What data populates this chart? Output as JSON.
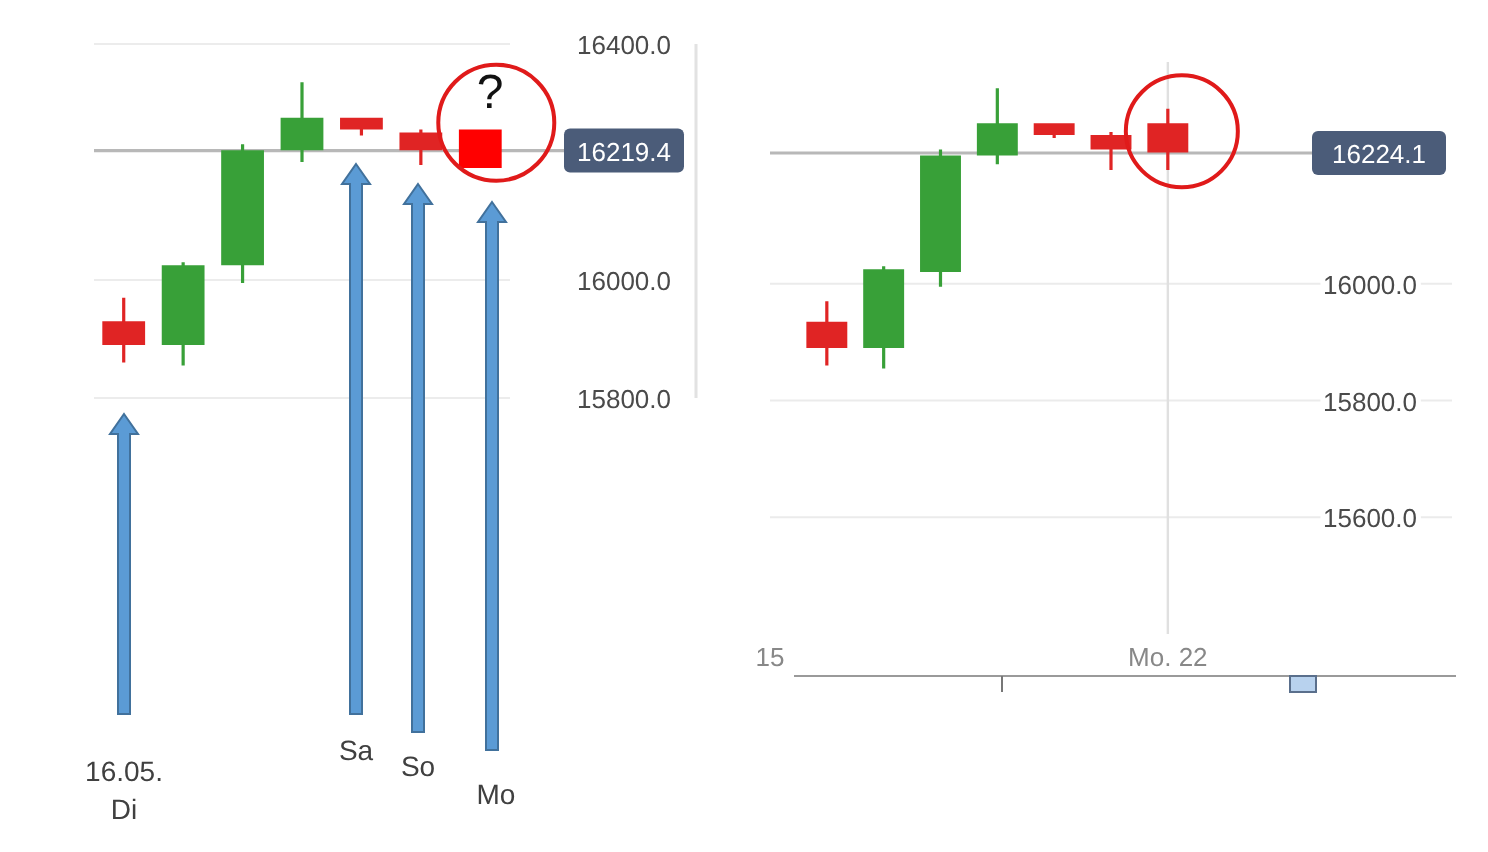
{
  "chart_data": [
    {
      "type": "candlestick",
      "categories": [
        null,
        null,
        null,
        null,
        null,
        null,
        null
      ],
      "ohlc": [
        [
          15930,
          15970,
          15860,
          15890
        ],
        [
          15890,
          16030,
          15855,
          16025
        ],
        [
          16025,
          16230,
          15995,
          16220
        ],
        [
          16220,
          16335,
          16200,
          16275
        ],
        [
          16275,
          16275,
          16245,
          16255
        ],
        [
          16250,
          16255,
          16195,
          16220
        ],
        [
          16255,
          16255,
          16190,
          16190
        ]
      ],
      "colors": [
        "#e02424",
        "#38a038",
        "#38a038",
        "#38a038",
        "#e02424",
        "#e02424",
        "#ff0000"
      ],
      "ylim": [
        15800,
        16400
      ],
      "yticks": [
        {
          "value": 15800,
          "label": "15800.0"
        },
        {
          "value": 16000,
          "label": "16000.0"
        },
        {
          "value": 16400,
          "label": "16400.0"
        }
      ],
      "grid": "y",
      "ref_lines": [
        {
          "axis": "y",
          "value": 16219.4,
          "label": "16219.4",
          "color": "#b8b8b8"
        }
      ],
      "annotations": [
        "16.05.\nDi",
        "Sa",
        "So",
        "Mo",
        "?"
      ]
    },
    {
      "type": "candlestick",
      "x": [
        "--05-16",
        "--05-17",
        "--05-18",
        "--05-19",
        "--05-20",
        "--05-21",
        "--05-22"
      ],
      "ohlc": [
        [
          15935,
          15970,
          15860,
          15890
        ],
        [
          15890,
          16030,
          15855,
          16025
        ],
        [
          16020,
          16230,
          15995,
          16220
        ],
        [
          16220,
          16335,
          16205,
          16275
        ],
        [
          16275,
          16275,
          16250,
          16255
        ],
        [
          16255,
          16260,
          16195,
          16230
        ],
        [
          16275,
          16300,
          16195,
          16225
        ]
      ],
      "colors": [
        "#e02424",
        "#38a038",
        "#38a038",
        "#38a038",
        "#e02424",
        "#e02424",
        "#e02424"
      ],
      "xlim": [
        "--05-15",
        "--05-27"
      ],
      "xticks": [
        {
          "value": "--05-15",
          "label": "15"
        },
        {
          "value": "--05-22",
          "label": "Mo. 22"
        }
      ],
      "ylim": [
        15400,
        16380
      ],
      "yticks": [
        {
          "value": 15600,
          "label": "15600.0"
        },
        {
          "value": 15800,
          "label": "15800.0"
        },
        {
          "value": 16000,
          "label": "16000.0"
        }
      ],
      "grid": "y",
      "ref_lines": [
        {
          "axis": "y",
          "value": 16224.1,
          "label": "16224.1",
          "color": "#b8b8b8"
        },
        {
          "axis": "x",
          "value": "--05-22",
          "color": "#e0e0e0"
        }
      ]
    }
  ]
}
